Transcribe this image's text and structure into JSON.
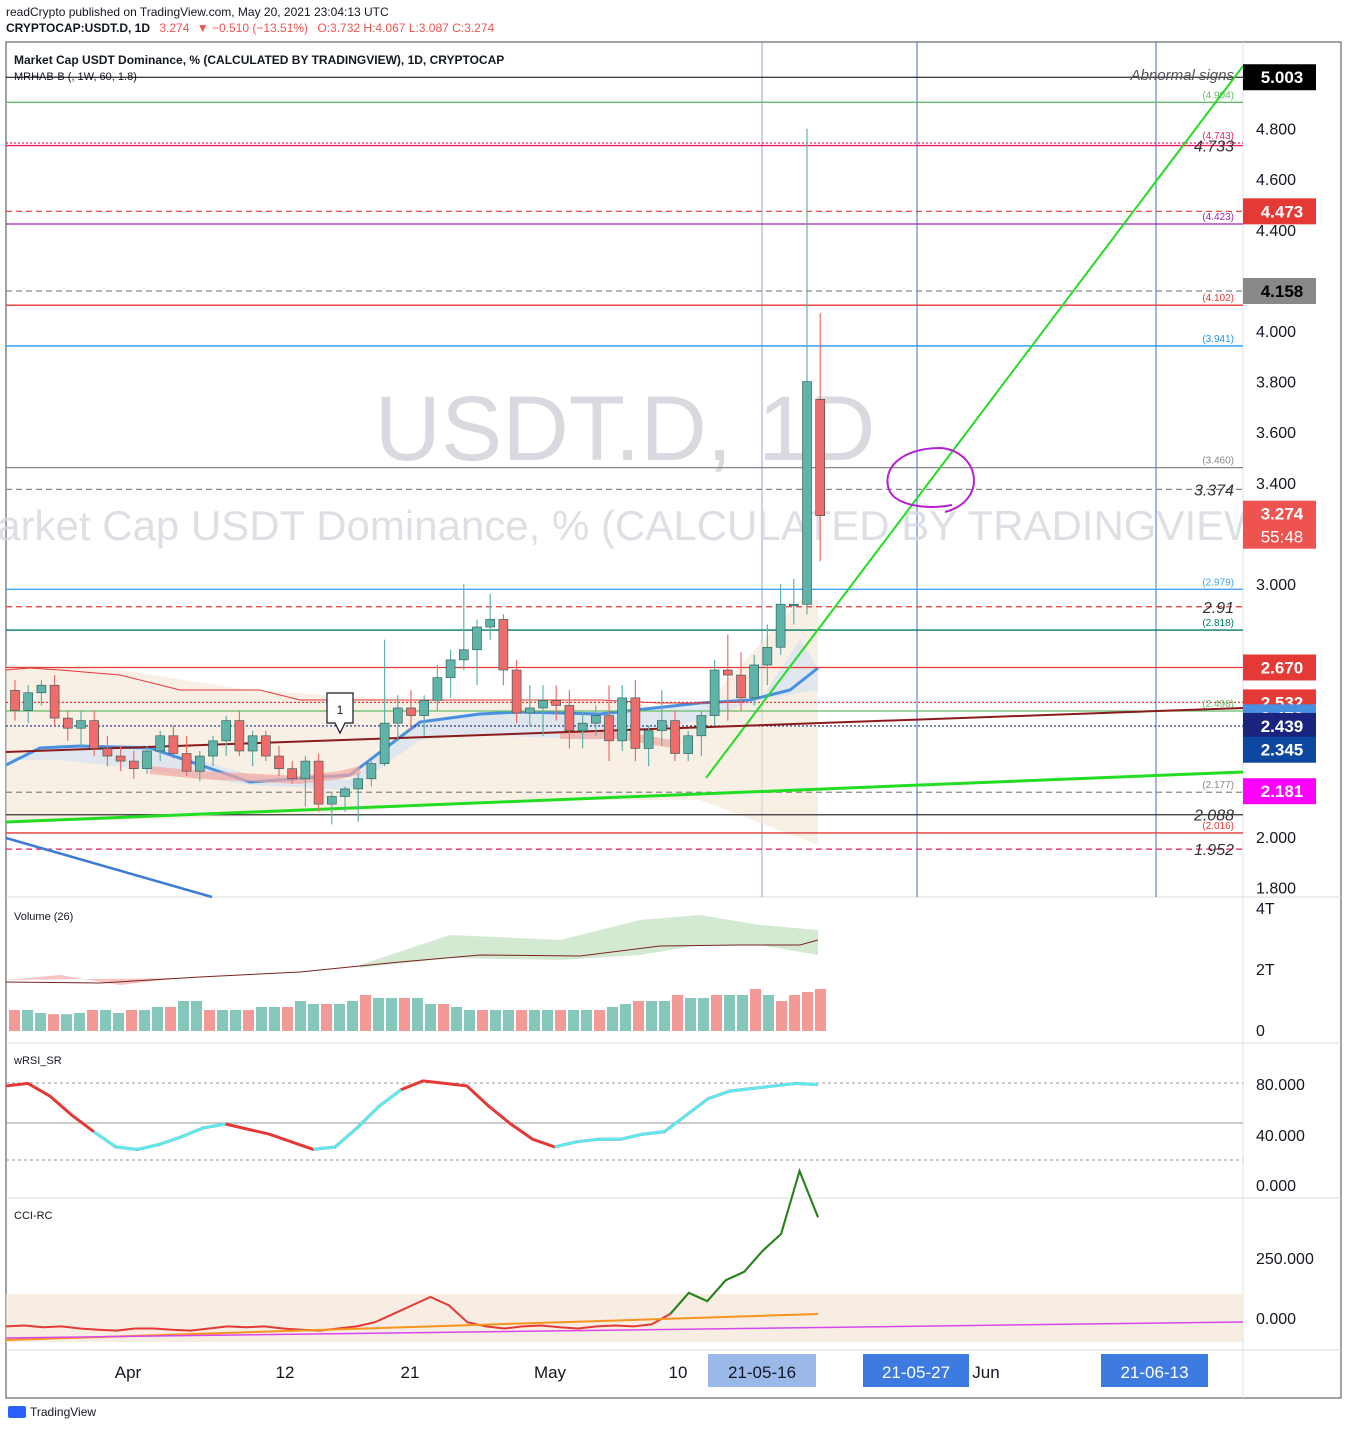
{
  "header": {
    "publisher": "readCrypto published on TradingView.com, May 20, 2021 23:04:13 UTC",
    "symbol": "CRYPTOCAP:USDT.D, 1D",
    "last": "3.274",
    "change": "▼ −0.510 (−13.51%)",
    "ohlc": "O:3.732 H:4.067 L:3.087 C:3.274"
  },
  "chart_title": "Market Cap USDT Dominance, % (CALCULATED BY TRADINGVIEW), 1D, CRYPTOCAP",
  "indicator_label": "MRHAB-B (, 1W, 60, 1.8)",
  "watermark": {
    "line1": "USDT.D, 1D",
    "line2": "Market Cap USDT Dominance, % (CALCULATED BY TRADINGVIEW)"
  },
  "annotation_text": "Abnormal signs",
  "marker_label": "1",
  "footer_brand": "TradingView",
  "colors": {
    "up": "#5fb3a9",
    "down": "#ef6c6c",
    "trend": "#22dd22",
    "blue": "#4a90e2",
    "grid": "#e0e3eb"
  },
  "chart_data": {
    "type": "candlestick",
    "ylim": [
      1.72,
      5.1
    ],
    "yticks": [
      "1.800",
      "2.000",
      "3.000",
      "3.200",
      "3.400",
      "3.600",
      "3.800",
      "4.000",
      "4.400",
      "4.600",
      "4.800"
    ],
    "candles": [
      [
        2.58,
        2.62,
        2.46,
        2.5
      ],
      [
        2.5,
        2.6,
        2.45,
        2.57
      ],
      [
        2.57,
        2.62,
        2.52,
        2.6
      ],
      [
        2.6,
        2.64,
        2.44,
        2.47
      ],
      [
        2.47,
        2.5,
        2.38,
        2.43
      ],
      [
        2.43,
        2.5,
        2.35,
        2.46
      ],
      [
        2.46,
        2.5,
        2.32,
        2.35
      ],
      [
        2.35,
        2.4,
        2.28,
        2.32
      ],
      [
        2.32,
        2.36,
        2.26,
        2.3
      ],
      [
        2.3,
        2.34,
        2.23,
        2.27
      ],
      [
        2.27,
        2.36,
        2.25,
        2.34
      ],
      [
        2.34,
        2.42,
        2.3,
        2.4
      ],
      [
        2.4,
        2.44,
        2.31,
        2.33
      ],
      [
        2.33,
        2.4,
        2.24,
        2.26
      ],
      [
        2.26,
        2.34,
        2.22,
        2.32
      ],
      [
        2.32,
        2.4,
        2.28,
        2.38
      ],
      [
        2.38,
        2.48,
        2.32,
        2.46
      ],
      [
        2.46,
        2.5,
        2.32,
        2.34
      ],
      [
        2.34,
        2.42,
        2.28,
        2.4
      ],
      [
        2.4,
        2.42,
        2.3,
        2.32
      ],
      [
        2.32,
        2.36,
        2.24,
        2.27
      ],
      [
        2.27,
        2.3,
        2.21,
        2.23
      ],
      [
        2.23,
        2.32,
        2.12,
        2.3
      ],
      [
        2.3,
        2.33,
        2.1,
        2.13
      ],
      [
        2.13,
        2.18,
        2.05,
        2.16
      ],
      [
        2.16,
        2.2,
        2.1,
        2.19
      ],
      [
        2.19,
        2.25,
        2.06,
        2.23
      ],
      [
        2.23,
        2.3,
        2.2,
        2.29
      ],
      [
        2.29,
        2.78,
        2.28,
        2.45
      ],
      [
        2.45,
        2.56,
        2.38,
        2.51
      ],
      [
        2.51,
        2.58,
        2.42,
        2.48
      ],
      [
        2.48,
        2.56,
        2.4,
        2.54
      ],
      [
        2.54,
        2.68,
        2.5,
        2.63
      ],
      [
        2.63,
        2.74,
        2.55,
        2.7
      ],
      [
        2.7,
        3.0,
        2.66,
        2.74
      ],
      [
        2.74,
        2.86,
        2.6,
        2.83
      ],
      [
        2.83,
        2.96,
        2.78,
        2.86
      ],
      [
        2.86,
        2.88,
        2.6,
        2.66
      ],
      [
        2.66,
        2.7,
        2.45,
        2.49
      ],
      [
        2.49,
        2.6,
        2.44,
        2.51
      ],
      [
        2.51,
        2.6,
        2.4,
        2.54
      ],
      [
        2.54,
        2.6,
        2.46,
        2.52
      ],
      [
        2.52,
        2.58,
        2.35,
        2.42
      ],
      [
        2.42,
        2.5,
        2.35,
        2.45
      ],
      [
        2.45,
        2.52,
        2.4,
        2.48
      ],
      [
        2.48,
        2.6,
        2.3,
        2.38
      ],
      [
        2.38,
        2.6,
        2.34,
        2.55
      ],
      [
        2.55,
        2.62,
        2.3,
        2.35
      ],
      [
        2.35,
        2.44,
        2.28,
        2.42
      ],
      [
        2.42,
        2.58,
        2.36,
        2.46
      ],
      [
        2.46,
        2.5,
        2.3,
        2.33
      ],
      [
        2.33,
        2.42,
        2.3,
        2.4
      ],
      [
        2.4,
        2.5,
        2.32,
        2.48
      ],
      [
        2.48,
        2.7,
        2.44,
        2.66
      ],
      [
        2.66,
        2.8,
        2.46,
        2.64
      ],
      [
        2.64,
        2.73,
        2.5,
        2.55
      ],
      [
        2.55,
        2.72,
        2.52,
        2.68
      ],
      [
        2.68,
        2.84,
        2.6,
        2.75
      ],
      [
        2.75,
        3.0,
        2.72,
        2.92
      ],
      [
        2.92,
        3.02,
        2.84,
        2.92
      ],
      [
        2.92,
        4.8,
        2.88,
        3.8
      ],
      [
        3.73,
        4.07,
        3.09,
        3.27
      ]
    ],
    "horizontal_levels": [
      {
        "value": "4.904",
        "color": "#66bb6a",
        "style": "solid"
      },
      {
        "value": "4.743",
        "color": "#e91e63",
        "style": "dotted"
      },
      {
        "value": "4.733",
        "color": "#e91e63",
        "style": "solid"
      },
      {
        "value": "4.473",
        "color": "#e53935",
        "style": "dashed"
      },
      {
        "value": "4.423",
        "color": "#9c27b0",
        "style": "solid"
      },
      {
        "value": "4.158",
        "color": "#888888",
        "style": "dashed"
      },
      {
        "value": "4.102",
        "color": "#e53935",
        "style": "solid"
      },
      {
        "value": "3.941",
        "color": "#2196f3",
        "style": "solid"
      },
      {
        "value": "3.460",
        "color": "#888888",
        "style": "solid"
      },
      {
        "value": "3.374",
        "color": "#888888",
        "style": "dashed"
      },
      {
        "value": "2.979",
        "color": "#42a5f5",
        "style": "solid"
      },
      {
        "value": "2.91",
        "color": "#e53935",
        "style": "dashed"
      },
      {
        "value": "2.818",
        "color": "#00796b",
        "style": "solid"
      },
      {
        "value": "2.670",
        "color": "#e53935",
        "style": "solid"
      },
      {
        "value": "2.532",
        "color": "#e53935",
        "style": "dotted"
      },
      {
        "value": "2.498",
        "color": "#66bb6a",
        "style": "solid"
      },
      {
        "value": "2.439",
        "color": "#1a237e",
        "style": "dotted"
      },
      {
        "value": "2.177",
        "color": "#888888",
        "style": "dashed"
      },
      {
        "value": "2.088",
        "color": "#333333",
        "style": "solid"
      },
      {
        "value": "2.016",
        "color": "#e53935",
        "style": "solid"
      },
      {
        "value": "1.952",
        "color": "#e91e63",
        "style": "dashed"
      }
    ],
    "level_labels": [
      "(4.904)",
      "(4.743)",
      "(4.423)",
      "(4.102)",
      "(3.941)",
      "(3.460)",
      "(2.979)",
      "(2.818)",
      "(2.498)",
      "(2.177)",
      "(2.016)"
    ],
    "italic_labels": [
      "4.733",
      "3.374",
      "2.91",
      "2.088",
      "1.952"
    ],
    "price_tags": [
      {
        "text": "5.003",
        "value": "5.003",
        "bg": "#000000",
        "fg": "#ffffff"
      },
      {
        "text": "4.473",
        "value": "4.473",
        "bg": "#e53935",
        "fg": "#ffffff"
      },
      {
        "text": "4.158",
        "value": "4.158",
        "bg": "#888888",
        "fg": "#000000"
      },
      {
        "text": "3.274",
        "sub": "55:48",
        "value": "3.274",
        "bg": "#ef5350",
        "fg": "#ffffff"
      },
      {
        "text": "2.670",
        "value": "2.670",
        "bg": "#e53935",
        "fg": "#ffffff"
      },
      {
        "text": "2.532",
        "value": "2.532",
        "bg": "#e53935",
        "fg": "#ffffff"
      },
      {
        "text": "2.473",
        "value": "2.473",
        "bg": "#4a90e2",
        "fg": "#ffffff"
      },
      {
        "text": "2.439",
        "value": "2.439",
        "bg": "#1a237e",
        "fg": "#ffffff"
      },
      {
        "text": "2.345",
        "value": "2.345",
        "bg": "#0d47a1",
        "fg": "#ffffff"
      },
      {
        "text": "2.181",
        "value": "2.181",
        "bg": "#ff00ff",
        "fg": "#ffffff"
      }
    ],
    "x_labels": [
      "Apr",
      "12",
      "21",
      "May",
      "10"
    ],
    "x_highlight_labels": [
      "21-05-16",
      "21-05-27",
      "Jun",
      "21-06-13"
    ]
  },
  "volume_panel": {
    "title": "Volume (26)",
    "axis": [
      "4T",
      "2T",
      "0"
    ],
    "bars": [
      0.35,
      0.35,
      0.3,
      0.28,
      0.28,
      0.3,
      0.35,
      0.35,
      0.3,
      0.35,
      0.35,
      0.4,
      0.4,
      0.5,
      0.5,
      0.35,
      0.35,
      0.35,
      0.35,
      0.4,
      0.4,
      0.4,
      0.5,
      0.45,
      0.45,
      0.45,
      0.5,
      0.6,
      0.55,
      0.55,
      0.55,
      0.55,
      0.45,
      0.45,
      0.4,
      0.35,
      0.35,
      0.35,
      0.35,
      0.35,
      0.35,
      0.35,
      0.35,
      0.35,
      0.35,
      0.35,
      0.4,
      0.45,
      0.5,
      0.5,
      0.5,
      0.6,
      0.55,
      0.55,
      0.6,
      0.6,
      0.6,
      0.7,
      0.6,
      0.5,
      0.6,
      0.65,
      0.7
    ]
  },
  "rsi_panel": {
    "title": "wRSI_SR",
    "axis": [
      "80.000",
      "40.000",
      "0.000"
    ],
    "line": [
      78,
      80,
      70,
      55,
      42,
      30,
      28,
      32,
      38,
      45,
      48,
      44,
      40,
      34,
      28,
      30,
      45,
      62,
      75,
      82,
      80,
      78,
      62,
      48,
      36,
      30,
      34,
      36,
      36,
      40,
      42,
      55,
      68,
      74,
      76,
      78,
      80,
      79
    ]
  },
  "cci_panel": {
    "title": "CCI-RC",
    "axis": [
      "250.000",
      "0.000"
    ],
    "line": [
      -20,
      -18,
      -22,
      -20,
      -25,
      -28,
      -30,
      -25,
      -25,
      -28,
      -30,
      -25,
      -20,
      -22,
      -20,
      -25,
      -28,
      -30,
      -25,
      -20,
      -10,
      10,
      30,
      50,
      30,
      -10,
      -20,
      -25,
      -20,
      -18,
      -22,
      -25,
      -20,
      -18,
      -20,
      -15,
      10,
      60,
      40,
      90,
      110,
      160,
      200,
      350,
      240
    ]
  }
}
